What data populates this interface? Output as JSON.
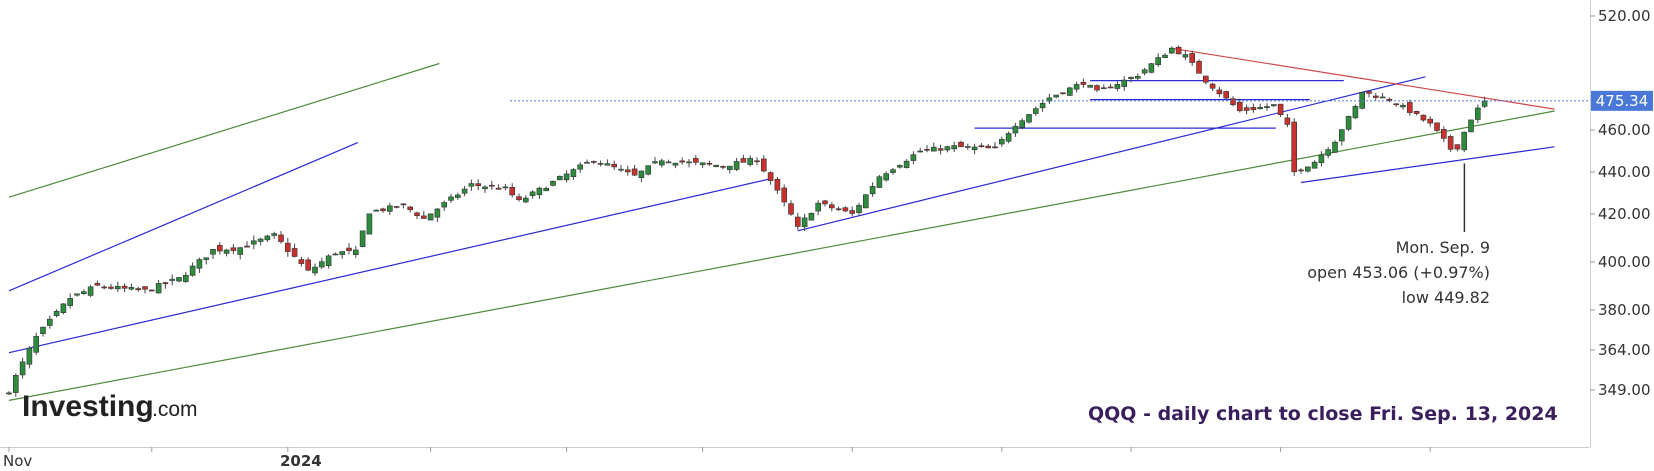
{
  "chart_data": {
    "type": "candlestick",
    "title": "QQQ - daily chart to close Fri. Sep. 13, 2024",
    "y_ticks": [
      "520.00",
      "475.34",
      "460.00",
      "440.00",
      "420.00",
      "400.00",
      "380.00",
      "364.00",
      "349.00"
    ],
    "y_tick_values": [
      520,
      460,
      440,
      420,
      400,
      380,
      364,
      349
    ],
    "x_ticks": [
      "Nov",
      "2024"
    ],
    "last_price": "475.34",
    "last_price_value": 475.34,
    "ylim": [
      340,
      522
    ],
    "colors": {
      "up": "#2e8b3e",
      "down": "#c8312e",
      "price_tag": "#4a78d8"
    },
    "annotation": {
      "line1": "Mon. Sep. 9",
      "line2": "open 453.06 (+0.97%)",
      "line3": "low 449.82",
      "low_value": 449.82
    },
    "candles": [],
    "trendlines": [
      {
        "color": "blue",
        "from": [
          "2023-11-01",
          388
        ],
        "to": [
          "2023-12-31",
          454
        ]
      },
      {
        "color": "blue",
        "from": [
          "2023-11-01",
          363
        ],
        "to": [
          "2024-03-29",
          437
        ]
      },
      {
        "color": "blue",
        "from": [
          "2024-04-19",
          413
        ],
        "to": [
          "2024-08-16",
          488
        ]
      },
      {
        "color": "blue",
        "from": [
          "2024-08-06",
          435
        ],
        "to": [
          "2024-09-13",
          452
        ]
      },
      {
        "color": "green",
        "from": [
          "2023-11-01",
          428
        ],
        "to": [
          "2024-01-19",
          495
        ]
      },
      {
        "color": "green",
        "from": [
          "2023-11-01",
          345
        ],
        "to": [
          "2024-09-13",
          470
        ]
      },
      {
        "color": "red",
        "from": [
          "2024-07-10",
          503
        ],
        "to": [
          "2024-09-13",
          471
        ]
      },
      {
        "color": "blue",
        "from": [
          "2024-06-21",
          486
        ],
        "to": [
          "2024-07-31",
          486
        ]
      },
      {
        "color": "blue",
        "from": [
          "2024-06-21",
          476
        ],
        "to": [
          "2024-07-24",
          476
        ]
      },
      {
        "color": "blue",
        "from": [
          "2024-05-28",
          461
        ],
        "to": [
          "2024-07-17",
          461
        ]
      }
    ]
  },
  "logo": {
    "main": "Investing",
    "suffix": ".com"
  }
}
